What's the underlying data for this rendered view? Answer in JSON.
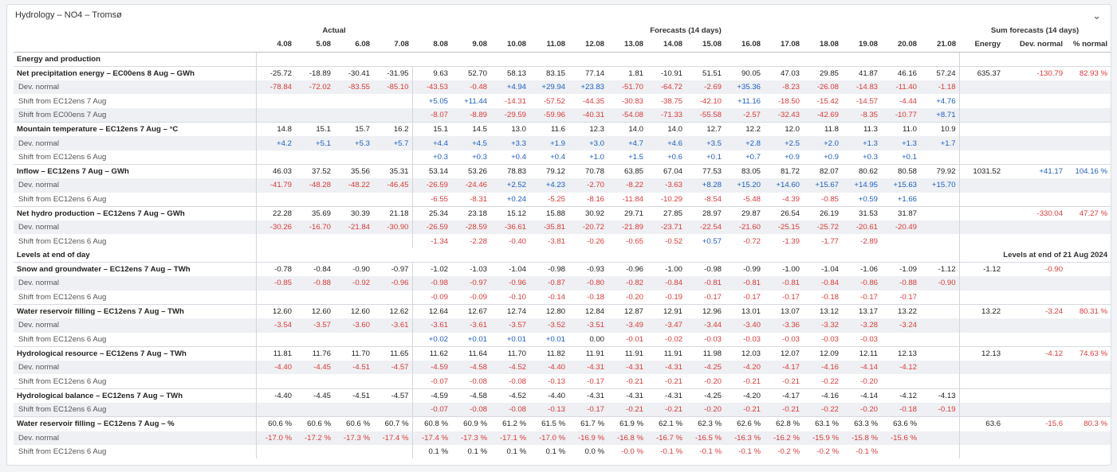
{
  "panel": {
    "title": "Hydrology – NO4 – Tromsø"
  },
  "headers": {
    "actual": "Actual",
    "forecasts": "Forecasts (14 days)",
    "sum": "Sum forecasts (14 days)",
    "dates": [
      "4.08",
      "5.08",
      "6.08",
      "7.08",
      "8.08",
      "9.08",
      "10.08",
      "11.08",
      "12.08",
      "13.08",
      "14.08",
      "15.08",
      "16.08",
      "17.08",
      "18.08",
      "19.08",
      "20.08",
      "21.08"
    ],
    "sum_cols": [
      "Energy",
      "Dev. normal",
      "% normal"
    ]
  },
  "sections": [
    {
      "title": "Energy and production",
      "right_label": ""
    },
    {
      "title": "Levels at end of day",
      "right_label": "Levels at end of 21 Aug 2024"
    }
  ],
  "rows": [
    {
      "sec": 0,
      "type": "main",
      "label": "Net precipitation energy – EC00ens 8 Aug – GWh",
      "vals": [
        "-25.72",
        "-18.89",
        "-30.41",
        "-31.95",
        "9.63",
        "52.70",
        "58.13",
        "83.15",
        "77.14",
        "1.81",
        "-10.91",
        "51.51",
        "90.05",
        "47.03",
        "29.85",
        "41.87",
        "46.16",
        "57.24"
      ],
      "sum": [
        "635.37",
        "-130.79",
        "82.93 %"
      ]
    },
    {
      "sec": 0,
      "type": "sub",
      "shade": true,
      "label": "Dev. normal",
      "vals": [
        "-78.84",
        "-72.02",
        "-83.55",
        "-85.10",
        "-43.53",
        "-0.48",
        "+4.94",
        "+29.94",
        "+23.83",
        "-51.70",
        "-64.72",
        "-2.69",
        "+35.36",
        "-8.23",
        "-26.08",
        "-14.83",
        "-11.40",
        "-1.18"
      ],
      "sum": [
        "",
        "",
        ""
      ]
    },
    {
      "sec": 0,
      "type": "sub",
      "label": "Shift from EC12ens 7 Aug",
      "vals": [
        "",
        "",
        "",
        "",
        "+5.05",
        "+11.44",
        "-14.31",
        "-57.52",
        "-44.35",
        "-30.83",
        "-38.75",
        "-42.10",
        "+11.16",
        "-18.50",
        "-15.42",
        "-14.57",
        "-4.44",
        "+4.76"
      ],
      "sum": [
        "",
        "",
        ""
      ]
    },
    {
      "sec": 0,
      "type": "sub",
      "shade": true,
      "label": "Shift from EC00ens 7 Aug",
      "vals": [
        "",
        "",
        "",
        "",
        "-8.07",
        "-8.89",
        "-29.59",
        "-59.96",
        "-40.31",
        "-54.08",
        "-71.33",
        "-55.58",
        "-2.57",
        "-32.43",
        "-42.69",
        "-8.35",
        "-10.77",
        "+8.71"
      ],
      "sum": [
        "",
        "",
        ""
      ]
    },
    {
      "sec": 0,
      "type": "main",
      "label": "Mountain temperature – EC12ens 7 Aug – °C",
      "vals": [
        "14.8",
        "15.1",
        "15.7",
        "16.2",
        "15.1",
        "14.5",
        "13.0",
        "11.6",
        "12.3",
        "14.0",
        "14.0",
        "12.7",
        "12.2",
        "12.0",
        "11.8",
        "11.3",
        "11.0",
        "10.9"
      ],
      "sum": [
        "",
        "",
        ""
      ]
    },
    {
      "sec": 0,
      "type": "sub",
      "shade": true,
      "label": "Dev. normal",
      "vals": [
        "+4.2",
        "+5.1",
        "+5.3",
        "+5.7",
        "+4.4",
        "+4.5",
        "+3.3",
        "+1.9",
        "+3.0",
        "+4.7",
        "+4.6",
        "+3.5",
        "+2.8",
        "+2.5",
        "+2.0",
        "+1.3",
        "+1.3",
        "+1.7"
      ],
      "sum": [
        "",
        "",
        ""
      ]
    },
    {
      "sec": 0,
      "type": "sub",
      "label": "Shift from EC12ens 6 Aug",
      "vals": [
        "",
        "",
        "",
        "",
        "+0.3",
        "+0.3",
        "+0.4",
        "+0.4",
        "+1.0",
        "+1.5",
        "+0.6",
        "+0.1",
        "+0.7",
        "+0.9",
        "+0.9",
        "+0.3",
        "+0.1",
        ""
      ],
      "sum": [
        "",
        "",
        ""
      ]
    },
    {
      "sec": 0,
      "type": "main",
      "label": "Inflow – EC12ens 7 Aug – GWh",
      "vals": [
        "46.03",
        "37.52",
        "35.56",
        "35.31",
        "53.14",
        "53.26",
        "78.83",
        "79.12",
        "70.78",
        "63.85",
        "67.04",
        "77.53",
        "83.05",
        "81.72",
        "82.07",
        "80.62",
        "80.58",
        "79.92"
      ],
      "sum": [
        "1031.52",
        "+41.17",
        "104.16 %"
      ]
    },
    {
      "sec": 0,
      "type": "sub",
      "shade": true,
      "label": "Dev. normal",
      "vals": [
        "-41.79",
        "-48.28",
        "-48.22",
        "-46.45",
        "-26.59",
        "-24.46",
        "+2.52",
        "+4.23",
        "-2.70",
        "-8.22",
        "-3.63",
        "+8.28",
        "+15.20",
        "+14.60",
        "+15.67",
        "+14.95",
        "+15.63",
        "+15.70"
      ],
      "sum": [
        "",
        "",
        ""
      ]
    },
    {
      "sec": 0,
      "type": "sub",
      "label": "Shift from EC12ens 6 Aug",
      "vals": [
        "",
        "",
        "",
        "",
        "-6.55",
        "-8.31",
        "+0.24",
        "-5.25",
        "-8.16",
        "-11.84",
        "-10.29",
        "-8.54",
        "-5.48",
        "-4.39",
        "-0.85",
        "+0.59",
        "+1.66",
        ""
      ],
      "sum": [
        "",
        "",
        ""
      ]
    },
    {
      "sec": 0,
      "type": "main",
      "label": "Net hydro production – EC12ens 7 Aug – GWh",
      "vals": [
        "22.28",
        "35.69",
        "30.39",
        "21.18",
        "25.34",
        "23.18",
        "15.12",
        "15.88",
        "30.92",
        "29.71",
        "27.85",
        "28.97",
        "29.87",
        "26.54",
        "26.19",
        "31.53",
        "31.87",
        ""
      ],
      "sum": [
        "",
        "-330.04",
        "47.27 %"
      ]
    },
    {
      "sec": 0,
      "type": "sub",
      "shade": true,
      "label": "Dev. normal",
      "vals": [
        "-30.26",
        "-16.70",
        "-21.84",
        "-30.90",
        "-26.59",
        "-28.59",
        "-36.61",
        "-35.81",
        "-20.72",
        "-21.89",
        "-23.71",
        "-22.54",
        "-21.60",
        "-25.15",
        "-25.72",
        "-20.61",
        "-20.49",
        ""
      ],
      "sum": [
        "",
        "",
        ""
      ]
    },
    {
      "sec": 0,
      "type": "sub",
      "label": "Shift from EC12ens 6 Aug",
      "vals": [
        "",
        "",
        "",
        "",
        "-1.34",
        "-2.28",
        "-0.40",
        "-3.81",
        "-0.26",
        "-0.65",
        "-0.52",
        "+0.57",
        "-0.72",
        "-1.39",
        "-1.77",
        "-2.89",
        "",
        ""
      ],
      "sum": [
        "",
        "",
        ""
      ]
    },
    {
      "sec": 1,
      "type": "main",
      "label": "Snow and groundwater – EC12ens 7 Aug – TWh",
      "vals": [
        "-0.78",
        "-0.84",
        "-0.90",
        "-0.97",
        "-1.02",
        "-1.03",
        "-1.04",
        "-0.98",
        "-0.93",
        "-0.96",
        "-1.00",
        "-0.98",
        "-0.99",
        "-1.00",
        "-1.04",
        "-1.06",
        "-1.09",
        "-1.12"
      ],
      "sum": [
        "-1.12",
        "-0.90",
        ""
      ]
    },
    {
      "sec": 1,
      "type": "sub",
      "shade": true,
      "label": "Dev. normal",
      "vals": [
        "-0.85",
        "-0.88",
        "-0.92",
        "-0.96",
        "-0.98",
        "-0.97",
        "-0.96",
        "-0.87",
        "-0.80",
        "-0.82",
        "-0.84",
        "-0.81",
        "-0.81",
        "-0.81",
        "-0.84",
        "-0.86",
        "-0.88",
        "-0.90"
      ],
      "sum": [
        "",
        "",
        ""
      ]
    },
    {
      "sec": 1,
      "type": "sub",
      "label": "Shift from EC12ens 6 Aug",
      "vals": [
        "",
        "",
        "",
        "",
        "-0.09",
        "-0.09",
        "-0.10",
        "-0.14",
        "-0.18",
        "-0.20",
        "-0.19",
        "-0.17",
        "-0.17",
        "-0.17",
        "-0.18",
        "-0.17",
        "-0.17",
        ""
      ],
      "sum": [
        "",
        "",
        ""
      ]
    },
    {
      "sec": 1,
      "type": "main",
      "label": "Water reservoir filling – EC12ens 7 Aug – TWh",
      "vals": [
        "12.60",
        "12.60",
        "12.60",
        "12.62",
        "12.64",
        "12.67",
        "12.74",
        "12.80",
        "12.84",
        "12.87",
        "12.91",
        "12.96",
        "13.01",
        "13.07",
        "13.12",
        "13.17",
        "13.22",
        ""
      ],
      "sum": [
        "13.22",
        "-3.24",
        "80.31 %"
      ]
    },
    {
      "sec": 1,
      "type": "sub",
      "shade": true,
      "label": "Dev. normal",
      "vals": [
        "-3.54",
        "-3.57",
        "-3.60",
        "-3.61",
        "-3.61",
        "-3.61",
        "-3.57",
        "-3.52",
        "-3.51",
        "-3.49",
        "-3.47",
        "-3.44",
        "-3.40",
        "-3.36",
        "-3.32",
        "-3.28",
        "-3.24",
        ""
      ],
      "sum": [
        "",
        "",
        ""
      ]
    },
    {
      "sec": 1,
      "type": "sub",
      "label": "Shift from EC12ens 6 Aug",
      "vals": [
        "",
        "",
        "",
        "",
        "+0.02",
        "+0.01",
        "+0.01",
        "+0.01",
        "0.00",
        "-0.01",
        "-0.02",
        "-0.03",
        "-0.03",
        "-0.03",
        "-0.03",
        "-0.03",
        "",
        ""
      ],
      "sum": [
        "",
        "",
        ""
      ]
    },
    {
      "sec": 1,
      "type": "main",
      "label": "Hydrological resource – EC12ens 7 Aug – TWh",
      "vals": [
        "11.81",
        "11.76",
        "11.70",
        "11.65",
        "11.62",
        "11.64",
        "11.70",
        "11.82",
        "11.91",
        "11.91",
        "11.91",
        "11.98",
        "12.03",
        "12.07",
        "12.09",
        "12.11",
        "12.13",
        ""
      ],
      "sum": [
        "12.13",
        "-4.12",
        "74.63 %"
      ]
    },
    {
      "sec": 1,
      "type": "sub",
      "shade": true,
      "label": "Dev. normal",
      "vals": [
        "-4.40",
        "-4.45",
        "-4.51",
        "-4.57",
        "-4.59",
        "-4.58",
        "-4.52",
        "-4.40",
        "-4.31",
        "-4.31",
        "-4.31",
        "-4.25",
        "-4.20",
        "-4.17",
        "-4.16",
        "-4.14",
        "-4.12",
        ""
      ],
      "sum": [
        "",
        "",
        ""
      ]
    },
    {
      "sec": 1,
      "type": "sub",
      "label": "Shift from EC12ens 6 Aug",
      "vals": [
        "",
        "",
        "",
        "",
        "-0.07",
        "-0.08",
        "-0.08",
        "-0.13",
        "-0.17",
        "-0.21",
        "-0.21",
        "-0.20",
        "-0.21",
        "-0.21",
        "-0.22",
        "-0.20",
        "",
        ""
      ],
      "sum": [
        "",
        "",
        ""
      ]
    },
    {
      "sec": 1,
      "type": "main",
      "label": "Hydrological balance – EC12ens 7 Aug – TWh",
      "vals": [
        "-4.40",
        "-4.45",
        "-4.51",
        "-4.57",
        "-4.59",
        "-4.58",
        "-4.52",
        "-4.40",
        "-4.31",
        "-4.31",
        "-4.31",
        "-4.25",
        "-4.20",
        "-4.17",
        "-4.16",
        "-4.14",
        "-4.12",
        "-4.13"
      ],
      "sum": [
        "",
        "",
        ""
      ]
    },
    {
      "sec": 1,
      "type": "sub",
      "shade": true,
      "label": "Shift from EC12ens 6 Aug",
      "vals": [
        "",
        "",
        "",
        "",
        "-0.07",
        "-0.08",
        "-0.08",
        "-0.13",
        "-0.17",
        "-0.21",
        "-0.21",
        "-0.20",
        "-0.21",
        "-0.21",
        "-0.22",
        "-0.20",
        "-0.18",
        "-0.19"
      ],
      "sum": [
        "",
        "",
        ""
      ]
    },
    {
      "sec": 1,
      "type": "main",
      "label": "Water reservoir filling – EC12ens 7 Aug – %",
      "vals": [
        "60.6 %",
        "60.6 %",
        "60.6 %",
        "60.7 %",
        "60.8 %",
        "60.9 %",
        "61.2 %",
        "61.5 %",
        "61.7 %",
        "61.9 %",
        "62.1 %",
        "62.3 %",
        "62.6 %",
        "62.8 %",
        "63.1 %",
        "63.3 %",
        "63.6 %",
        ""
      ],
      "sum": [
        "63.6",
        "-15.6",
        "80.3 %"
      ]
    },
    {
      "sec": 1,
      "type": "sub",
      "shade": true,
      "label": "Dev. normal",
      "vals": [
        "-17.0 %",
        "-17.2 %",
        "-17.3 %",
        "-17.4 %",
        "-17.4 %",
        "-17.3 %",
        "-17.1 %",
        "-17.0 %",
        "-16.9 %",
        "-16.8 %",
        "-16.7 %",
        "-16.5 %",
        "-16.3 %",
        "-16.2 %",
        "-15.9 %",
        "-15.8 %",
        "-15.6 %",
        ""
      ],
      "sum": [
        "",
        "",
        ""
      ]
    },
    {
      "sec": 1,
      "type": "sub",
      "label": "Shift from EC12ens 6 Aug",
      "vals": [
        "",
        "",
        "",
        "",
        "0.1 %",
        "0.1 %",
        "0.1 %",
        "0.1 %",
        "0.0 %",
        "-0.0 %",
        "-0.1 %",
        "-0.1 %",
        "-0.1 %",
        "-0.2 %",
        "-0.2 %",
        "-0.1 %",
        "",
        ""
      ],
      "sum": [
        "",
        "",
        ""
      ]
    }
  ],
  "colors": {
    "positive": "#1f5fbf",
    "negative": "#d93b3b",
    "shade": "#eef0f3",
    "border": "#d6dae0"
  }
}
